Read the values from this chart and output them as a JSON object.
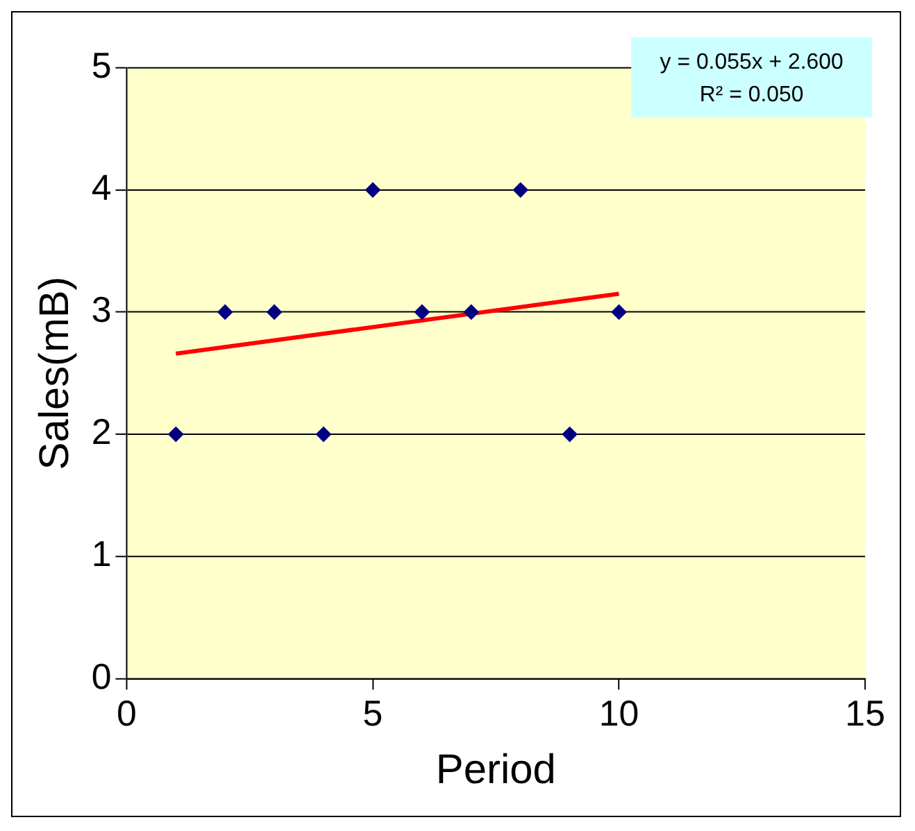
{
  "chart_data": {
    "type": "scatter",
    "xlabel": "Period",
    "ylabel": "Sales(mB)",
    "series": [
      {
        "color": "#000080",
        "marker": "diamond",
        "x": [
          1,
          2,
          3,
          4,
          5,
          6,
          7,
          8,
          9,
          10
        ],
        "values": [
          2,
          3,
          3,
          2,
          4,
          3,
          3,
          4,
          2,
          3
        ]
      },
      {
        "type": "line",
        "color": "#ff0000",
        "marker": "none",
        "x": [
          1,
          10
        ],
        "values": [
          2.66,
          3.15
        ]
      }
    ],
    "xlim": [
      0,
      15
    ],
    "xticks": [
      0,
      5,
      10,
      15
    ],
    "ylim": [
      0,
      5
    ],
    "yticks": [
      0,
      1,
      2,
      3,
      4,
      5
    ],
    "grid": "y",
    "annotations": [
      "y = 0.055x + 2.600",
      "R² = 0.050"
    ]
  }
}
